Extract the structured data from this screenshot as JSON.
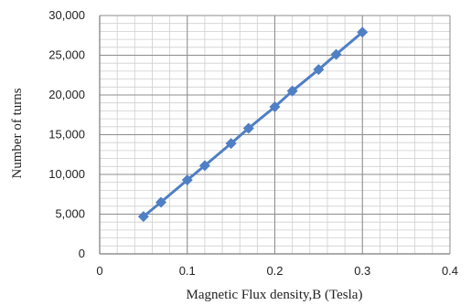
{
  "chart_data": {
    "type": "line",
    "title": "",
    "xlabel": "Magnetic Flux density,B (Tesla)",
    "ylabel": "Number of turns",
    "xlim": [
      0,
      0.4
    ],
    "ylim": [
      0,
      30000
    ],
    "x_ticks": [
      "0",
      "0.1",
      "0.2",
      "0.3",
      "0.4"
    ],
    "y_ticks": [
      "0",
      "5,000",
      "10,000",
      "15,000",
      "20,000",
      "25,000",
      "30,000"
    ],
    "grid": true,
    "legend": "none",
    "series": [
      {
        "marker": "diamond",
        "color": "#4f7fc4",
        "x": [
          0.05,
          0.07,
          0.1,
          0.12,
          0.15,
          0.17,
          0.2,
          0.22,
          0.25,
          0.27,
          0.3
        ],
        "y": [
          4700,
          6500,
          9300,
          11100,
          13900,
          15800,
          18500,
          20500,
          23200,
          25100,
          27900
        ]
      }
    ]
  }
}
